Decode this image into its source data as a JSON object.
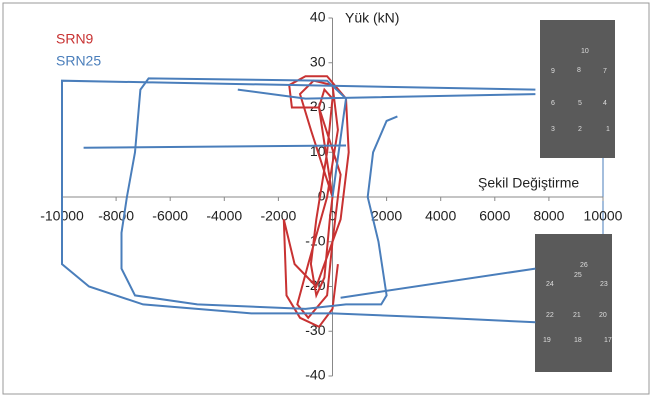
{
  "chart_data": {
    "type": "line",
    "y_axis_label": "Yük (kN)",
    "x_axis_label": "Şekil Değiştirme",
    "xlim": [
      -10000,
      10000
    ],
    "xticks": [
      -10000,
      -8000,
      -6000,
      -4000,
      -2000,
      0,
      2000,
      4000,
      6000,
      8000,
      10000
    ],
    "ylim": [
      -40,
      40
    ],
    "yticks": [
      -40,
      -30,
      -20,
      -10,
      0,
      10,
      20,
      30,
      40
    ],
    "grid": false,
    "legend": "top-left",
    "series": [
      {
        "name": "SRN9",
        "color": "#c83232",
        "x": [
          0,
          -300,
          -500,
          -300,
          0,
          -200,
          -600,
          -800,
          -600,
          -300,
          -100,
          0,
          -800,
          -1200,
          -700,
          0,
          200,
          -200,
          -900,
          -1300,
          -900,
          -200,
          0,
          300,
          -500,
          -1500,
          -1600,
          -1000,
          -200,
          500,
          600,
          300,
          -600,
          -1400,
          -1800,
          -1700,
          -1200,
          -500,
          0,
          200
        ],
        "values": [
          0,
          12,
          20,
          24,
          22,
          10,
          -5,
          -15,
          -22,
          -18,
          -5,
          0,
          15,
          23,
          26,
          25,
          15,
          0,
          -15,
          -24,
          -27,
          -22,
          -10,
          5,
          20,
          20,
          25,
          27,
          27,
          22,
          10,
          -5,
          -20,
          -15,
          -5,
          -22,
          -27,
          -29,
          -25,
          -15
        ]
      },
      {
        "name": "SRN25",
        "color": "#4a7ebb",
        "x": [
          0,
          500,
          -200,
          -6800,
          -7100,
          -7300,
          -7600,
          -7800,
          -7800,
          -7300,
          -5000,
          -1000,
          500,
          1800,
          2000,
          1700,
          1300,
          1500,
          2000,
          2400,
          null,
          7500,
          -10000,
          -10000,
          -9000,
          -7000,
          -3000,
          0,
          4000,
          7500,
          null,
          -9200,
          500,
          null,
          300,
          7500,
          null,
          -3500,
          -1000,
          7500
        ],
        "values": [
          0,
          22,
          26,
          26.5,
          24,
          10,
          0,
          -8,
          -16,
          -22,
          -24,
          -25,
          -24,
          -24,
          -22,
          -10,
          0,
          10,
          17,
          18,
          null,
          24,
          26,
          -15,
          -20,
          -24,
          -26,
          -26,
          -27,
          -28,
          null,
          11,
          11.5,
          null,
          -22.5,
          -16,
          null,
          24,
          22,
          23
        ]
      }
    ]
  },
  "insets": [
    {
      "labels": [
        "10",
        "8",
        "9",
        "7",
        "6",
        "5",
        "4",
        "3",
        "2",
        "1"
      ]
    },
    {
      "labels": [
        "26",
        "25",
        "24",
        "23",
        "22",
        "21",
        "20",
        "19",
        "18",
        "17"
      ]
    }
  ]
}
